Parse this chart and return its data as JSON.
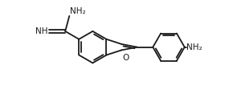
{
  "bg_color": "#ffffff",
  "line_color": "#1a1a1a",
  "line_width": 1.3,
  "font_size": 7.0,
  "figsize": [
    2.8,
    1.17
  ],
  "dpi": 100,
  "atoms": {
    "O_label": "O",
    "NH2_right": "NH₂",
    "NH2_top": "NH₂",
    "imine_label": "NH"
  },
  "xlim": [
    0,
    10
  ],
  "ylim": [
    0,
    4.17
  ]
}
